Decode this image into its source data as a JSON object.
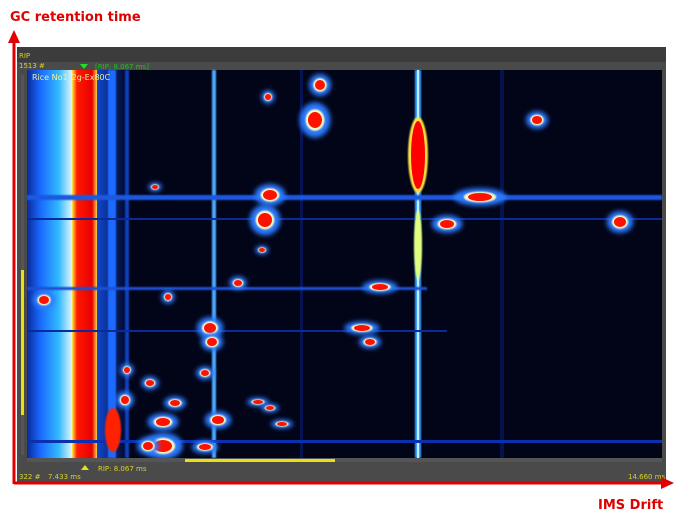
{
  "axis_labels": {
    "vertical": "GC retention time",
    "horizontal": "IMS Drift"
  },
  "window": {
    "top_bar": {
      "rip": "RIP",
      "top_index": "1513 #",
      "rip_marker": "[RIP: 8.067 ms]"
    },
    "sample_name": "Rice No1_2g-Ex80C",
    "bottom_bar": {
      "bottom_index": "322 #",
      "start_time": "7.433 ms",
      "rip_marker": "RIP: 8.067 ms",
      "end_time": "14.660 ms"
    }
  }
}
